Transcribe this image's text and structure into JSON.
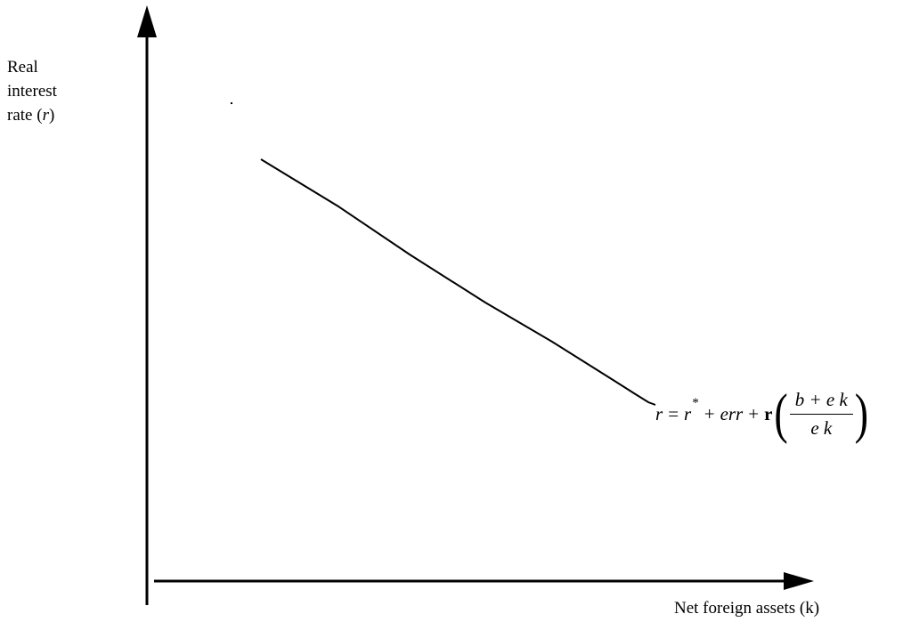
{
  "axes": {
    "y_label": [
      "Real",
      "interest",
      "rate (r)"
    ],
    "x_label": "Net foreign assets (k)"
  },
  "curve": {
    "equation": {
      "lhs": "r",
      "eq": "=",
      "r_star_base": "r",
      "r_star_sup": "*",
      "plus1": "+",
      "err": "err",
      "plus2": "+",
      "coef": "r",
      "open_paren": "(",
      "numerator": "b + e k",
      "denominator": "e k",
      "close_paren": ")"
    }
  }
}
